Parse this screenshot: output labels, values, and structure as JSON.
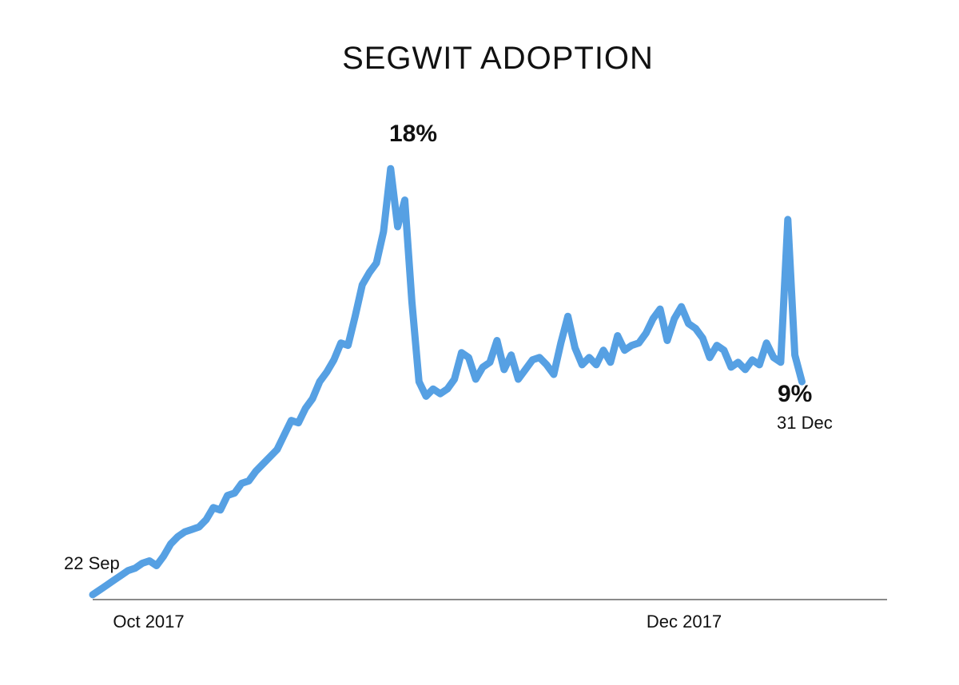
{
  "chart_data": {
    "type": "line",
    "title": "SEGWIT ADOPTION",
    "xlabel": "",
    "ylabel": "",
    "grid": false,
    "x_ticks": [
      "Oct 2017",
      "Dec 2017"
    ],
    "x_tick_days": [
      9,
      70
    ],
    "xlim_days": [
      0,
      112
    ],
    "ylim": [
      0,
      18.5
    ],
    "series": [
      {
        "name": "Segwit adoption (%)",
        "color": "#56a0e3",
        "x_days": [
          0,
          1,
          2,
          3,
          4,
          5,
          6,
          7,
          8,
          9,
          10,
          11,
          12,
          13,
          14,
          15,
          16,
          17,
          18,
          19,
          20,
          21,
          22,
          23,
          24,
          25,
          26,
          27,
          28,
          29,
          30,
          31,
          32,
          33,
          34,
          35,
          36,
          37,
          38,
          39,
          40,
          41,
          42,
          43,
          44,
          45,
          46,
          47,
          48,
          49,
          50,
          51,
          52,
          53,
          54,
          55,
          56,
          57,
          58,
          59,
          60,
          61,
          62,
          63,
          64,
          65,
          66,
          67,
          68,
          69,
          70,
          71,
          72,
          73,
          74,
          75,
          76,
          77,
          78,
          79,
          80,
          81,
          82,
          83,
          84,
          85,
          86,
          87,
          88,
          89,
          90,
          91,
          92,
          93,
          94,
          95,
          96,
          97,
          98,
          99,
          100
        ],
        "y": [
          0.2,
          0.4,
          0.6,
          0.8,
          1.0,
          1.2,
          1.3,
          1.5,
          1.6,
          1.4,
          1.8,
          2.3,
          2.6,
          2.8,
          2.9,
          3.0,
          3.3,
          3.8,
          3.7,
          4.3,
          4.4,
          4.8,
          4.9,
          5.3,
          5.6,
          5.9,
          6.2,
          6.8,
          7.4,
          7.3,
          7.9,
          8.3,
          9.0,
          9.4,
          9.9,
          10.6,
          10.5,
          11.7,
          13.0,
          13.5,
          13.9,
          15.2,
          17.8,
          15.4,
          16.5,
          12.3,
          9.0,
          8.4,
          8.7,
          8.5,
          8.7,
          9.1,
          10.2,
          10.0,
          9.1,
          9.6,
          9.8,
          10.7,
          9.5,
          10.1,
          9.1,
          9.5,
          9.9,
          10.0,
          9.7,
          9.3,
          10.6,
          11.7,
          10.4,
          9.7,
          10.0,
          9.7,
          10.3,
          9.8,
          10.9,
          10.3,
          10.5,
          10.6,
          11.0,
          11.6,
          12.0,
          10.7,
          11.6,
          12.1,
          11.4,
          11.2,
          10.8,
          10.0,
          10.5,
          10.3,
          9.6,
          9.8,
          9.5,
          9.9,
          9.7,
          10.6,
          10.0,
          9.8,
          15.7,
          10.1,
          9.0
        ],
        "points": [
          "22 Sep",
          "18%",
          "9%",
          "31 Dec"
        ]
      }
    ],
    "annotations": {
      "start_label": "22 Sep",
      "peak_value": "18%",
      "end_value": "9%",
      "end_date": "31 Dec"
    }
  }
}
